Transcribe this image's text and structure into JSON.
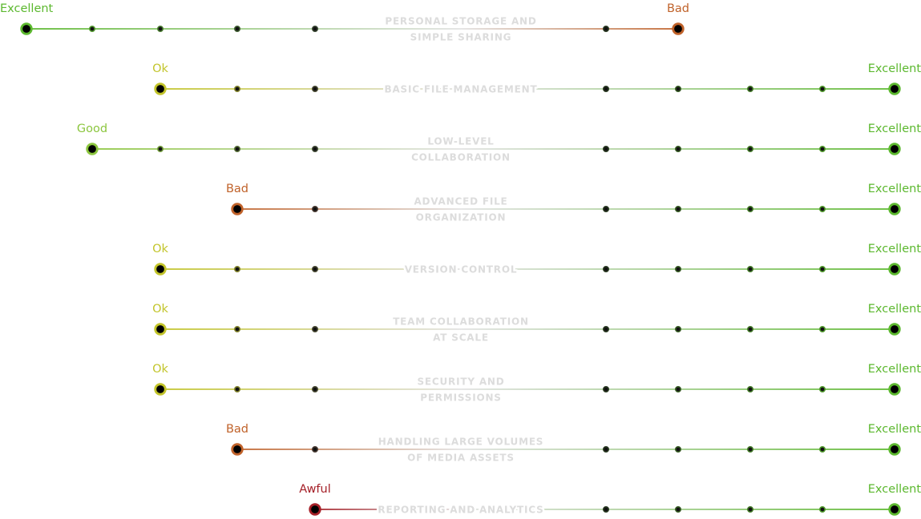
{
  "colors": {
    "Excellent": "#5cb82f",
    "Good": "#8cc63f",
    "Ok": "#c2c42a",
    "Bad": "#c0622a",
    "Awful": "#a52028",
    "label_gray": "#dcdcdc",
    "dot_dark": "#111111"
  },
  "scale": {
    "left_ratings": [
      "Excellent",
      "Good",
      "Ok",
      "Bad",
      "Awful"
    ],
    "right_ratings": [
      "Bad",
      "Excellent"
    ]
  },
  "rows": [
    {
      "label_lines": [
        "PERSONAL STORAGE AND",
        "SIMPLE SHARING"
      ],
      "left_rating": "Excellent",
      "left_step": 0,
      "right_rating": "Bad",
      "right_step": 0
    },
    {
      "label_lines": [
        "BASIC FILE MANAGEMENT"
      ],
      "left_rating": "Ok",
      "left_step": 2,
      "right_rating": "Excellent",
      "right_step": 4
    },
    {
      "label_lines": [
        "LOW-LEVEL",
        "COLLABORATION"
      ],
      "left_rating": "Good",
      "left_step": 1,
      "right_rating": "Excellent",
      "right_step": 4
    },
    {
      "label_lines": [
        "ADVANCED FILE",
        "ORGANIZATION"
      ],
      "left_rating": "Bad",
      "left_step": 3,
      "right_rating": "Excellent",
      "right_step": 4
    },
    {
      "label_lines": [
        "VERSION CONTROL"
      ],
      "left_rating": "Ok",
      "left_step": 2,
      "right_rating": "Excellent",
      "right_step": 4
    },
    {
      "label_lines": [
        "TEAM COLLABORATION",
        "AT SCALE"
      ],
      "left_rating": "Ok",
      "left_step": 2,
      "right_rating": "Excellent",
      "right_step": 4
    },
    {
      "label_lines": [
        "SECURITY AND",
        "PERMISSIONS"
      ],
      "left_rating": "Ok",
      "left_step": 2,
      "right_rating": "Excellent",
      "right_step": 4
    },
    {
      "label_lines": [
        "HANDLING LARGE VOLUMES",
        "OF MEDIA ASSETS"
      ],
      "left_rating": "Bad",
      "left_step": 3,
      "right_rating": "Excellent",
      "right_step": 4
    },
    {
      "label_lines": [
        "REPORTING AND ANALYTICS"
      ],
      "left_rating": "Awful",
      "left_step": 4,
      "right_rating": "Excellent",
      "right_step": 4
    }
  ]
}
